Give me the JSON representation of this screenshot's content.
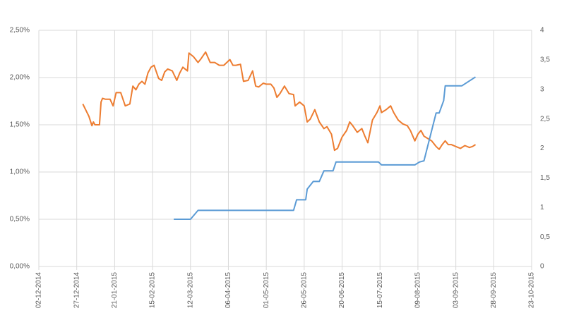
{
  "chart_data": {
    "type": "line",
    "xlim": [
      "2014-12-02",
      "2015-10-23"
    ],
    "xticks": [
      {
        "value": "2014-12-02",
        "label": "02-12-2014"
      },
      {
        "value": "2014-12-27",
        "label": "27-12-2014"
      },
      {
        "value": "2015-01-21",
        "label": "21-01-2015"
      },
      {
        "value": "2015-02-15",
        "label": "15-02-2015"
      },
      {
        "value": "2015-03-12",
        "label": "12-03-2015"
      },
      {
        "value": "2015-04-06",
        "label": "06-04-2015"
      },
      {
        "value": "2015-05-01",
        "label": "01-05-2015"
      },
      {
        "value": "2015-05-26",
        "label": "26-05-2015"
      },
      {
        "value": "2015-06-20",
        "label": "20-06-2015"
      },
      {
        "value": "2015-07-15",
        "label": "15-07-2015"
      },
      {
        "value": "2015-08-09",
        "label": "09-08-2015"
      },
      {
        "value": "2015-09-03",
        "label": "03-09-2015"
      },
      {
        "value": "2015-09-28",
        "label": "28-09-2015"
      },
      {
        "value": "2015-10-23",
        "label": "23-10-2015"
      }
    ],
    "ylim": [
      0,
      2.5
    ],
    "yticks": [
      {
        "value": 0,
        "label": "0,00%"
      },
      {
        "value": 0.5,
        "label": "0,50%"
      },
      {
        "value": 1,
        "label": "1,00%"
      },
      {
        "value": 1.5,
        "label": "1,50%"
      },
      {
        "value": 2,
        "label": "2,00%"
      },
      {
        "value": 2.5,
        "label": "2,50%"
      }
    ],
    "y2lim": [
      0,
      4
    ],
    "y2ticks": [
      0,
      {
        "value": 0.5,
        "label": "0,5"
      },
      1,
      {
        "value": 1.5,
        "label": "1,5"
      },
      2,
      {
        "value": 2.5,
        "label": "2,5"
      },
      3,
      {
        "value": 3.5,
        "label": "3,5"
      },
      4
    ],
    "grid": true,
    "series": [
      {
        "color": "#ed7d31",
        "axis": "y",
        "x": [
          "2014-12-31",
          "2015-01-04",
          "2015-01-06",
          "2015-01-07",
          "2015-01-08",
          "2015-01-11",
          "2015-01-12",
          "2015-01-13",
          "2015-01-15",
          "2015-01-18",
          "2015-01-20",
          "2015-01-22",
          "2015-01-25",
          "2015-01-28",
          "2015-01-31",
          "2015-02-02",
          "2015-02-04",
          "2015-02-06",
          "2015-02-08",
          "2015-02-10",
          "2015-02-12",
          "2015-02-14",
          "2015-02-16",
          "2015-02-19",
          "2015-02-21",
          "2015-02-23",
          "2015-02-25",
          "2015-02-28",
          "2015-03-03",
          "2015-03-05",
          "2015-03-07",
          "2015-03-10",
          "2015-03-11",
          "2015-03-14",
          "2015-03-17",
          "2015-03-19",
          "2015-03-22",
          "2015-03-25",
          "2015-03-28",
          "2015-03-31",
          "2015-04-03",
          "2015-04-07",
          "2015-04-09",
          "2015-04-11",
          "2015-04-14",
          "2015-04-16",
          "2015-04-19",
          "2015-04-22",
          "2015-04-24",
          "2015-04-26",
          "2015-04-29",
          "2015-05-01",
          "2015-05-04",
          "2015-05-06",
          "2015-05-08",
          "2015-05-10",
          "2015-05-13",
          "2015-05-16",
          "2015-05-19",
          "2015-05-20",
          "2015-05-23",
          "2015-05-26",
          "2015-05-28",
          "2015-05-30",
          "2015-06-02",
          "2015-06-05",
          "2015-06-08",
          "2015-06-10",
          "2015-06-13",
          "2015-06-15",
          "2015-06-17",
          "2015-06-20",
          "2015-06-23",
          "2015-06-25",
          "2015-06-27",
          "2015-06-30",
          "2015-07-03",
          "2015-07-05",
          "2015-07-07",
          "2015-07-10",
          "2015-07-13",
          "2015-07-15",
          "2015-07-16",
          "2015-07-19",
          "2015-07-22",
          "2015-07-24",
          "2015-07-27",
          "2015-07-30",
          "2015-08-02",
          "2015-08-04",
          "2015-08-07",
          "2015-08-09",
          "2015-08-11",
          "2015-08-13",
          "2015-08-15",
          "2015-08-18",
          "2015-08-21",
          "2015-08-23",
          "2015-08-25",
          "2015-08-27",
          "2015-08-29",
          "2015-08-31",
          "2015-09-03",
          "2015-09-06",
          "2015-09-09",
          "2015-09-12",
          "2015-09-14",
          "2015-09-16"
        ],
        "values": [
          1.72,
          1.59,
          1.49,
          1.53,
          1.5,
          1.5,
          1.74,
          1.78,
          1.77,
          1.77,
          1.7,
          1.84,
          1.84,
          1.7,
          1.72,
          1.91,
          1.87,
          1.93,
          1.96,
          1.93,
          2.05,
          2.11,
          2.13,
          1.99,
          1.97,
          2.06,
          2.09,
          2.07,
          1.97,
          2.05,
          2.11,
          2.07,
          2.26,
          2.22,
          2.16,
          2.2,
          2.27,
          2.16,
          2.16,
          2.13,
          2.13,
          2.19,
          2.13,
          2.13,
          2.14,
          1.96,
          1.97,
          2.07,
          1.91,
          1.9,
          1.94,
          1.93,
          1.93,
          1.89,
          1.79,
          1.83,
          1.91,
          1.83,
          1.82,
          1.7,
          1.74,
          1.7,
          1.53,
          1.56,
          1.66,
          1.53,
          1.46,
          1.48,
          1.4,
          1.23,
          1.25,
          1.37,
          1.44,
          1.53,
          1.49,
          1.42,
          1.46,
          1.38,
          1.31,
          1.55,
          1.63,
          1.7,
          1.63,
          1.66,
          1.7,
          1.63,
          1.55,
          1.51,
          1.49,
          1.44,
          1.33,
          1.4,
          1.44,
          1.38,
          1.36,
          1.33,
          1.27,
          1.24,
          1.29,
          1.33,
          1.29,
          1.29,
          1.27,
          1.25,
          1.28,
          1.26,
          1.27,
          1.29
        ]
      },
      {
        "color": "#5b9bd5",
        "axis": "y2",
        "x": [
          "2015-03-01",
          "2015-03-12",
          "2015-03-17",
          "2015-05-19",
          "2015-05-21",
          "2015-05-27",
          "2015-05-28",
          "2015-06-01",
          "2015-06-05",
          "2015-06-08",
          "2015-06-14",
          "2015-06-16",
          "2015-07-14",
          "2015-07-16",
          "2015-08-07",
          "2015-08-10",
          "2015-08-13",
          "2015-08-21",
          "2015-08-23",
          "2015-08-26",
          "2015-08-27",
          "2015-09-07",
          "2015-09-16"
        ],
        "values": [
          0.8,
          0.8,
          0.95,
          0.95,
          1.13,
          1.13,
          1.31,
          1.44,
          1.44,
          1.62,
          1.62,
          1.77,
          1.77,
          1.72,
          1.72,
          1.77,
          1.79,
          2.6,
          2.6,
          2.81,
          3.06,
          3.06,
          3.21
        ]
      }
    ]
  }
}
